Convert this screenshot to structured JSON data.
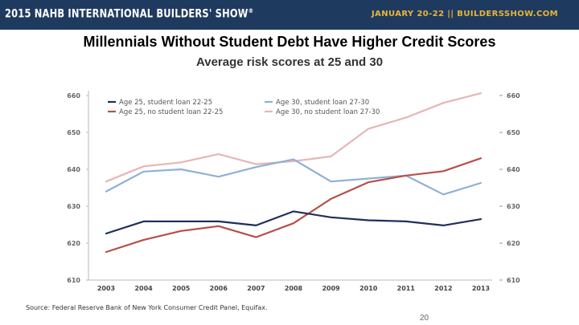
{
  "header": {
    "event": "2015 NAHB INTERNATIONAL BUILDERS' SHOW",
    "trademark": "®",
    "dates_site": "JANUARY 20-22  ||  BUILDERSSHOW.COM",
    "colors": {
      "banner": "#1f3a5f",
      "accent": "#e8b53a"
    }
  },
  "slide": {
    "title": "Millennials Without Student Debt Have Higher Credit Scores",
    "source": "Source:  Federal Reserve Bank of New York Consumer Credit Panel, Equifax.",
    "page_number": "20"
  },
  "chart_data": {
    "type": "line",
    "title": "Average risk scores at 25 and 30",
    "xlabel": "",
    "ylabel": "",
    "x": [
      "2003",
      "2004",
      "2005",
      "2006",
      "2007",
      "2008",
      "2009",
      "2010",
      "2011",
      "2012",
      "2013"
    ],
    "ylim": [
      610,
      660
    ],
    "yticks": [
      "610",
      "620",
      "630",
      "640",
      "650",
      "660"
    ],
    "dual_axis_mirrored": true,
    "legend_position": "top-left",
    "grid": false,
    "series": [
      {
        "name": "Age 25, student loan 22-25",
        "color": "#1f2f5a",
        "values": [
          622.6,
          625.9,
          625.9,
          625.9,
          624.8,
          628.6,
          627.0,
          626.2,
          625.9,
          624.8,
          626.5
        ]
      },
      {
        "name": "Age 30, student loan 27-30",
        "color": "#8fb0d6",
        "values": [
          634.0,
          639.4,
          640.0,
          638.0,
          640.6,
          642.7,
          636.7,
          637.5,
          638.3,
          633.2,
          636.3
        ]
      },
      {
        "name": "Age 25, no student loan 22-25",
        "color": "#b5504a",
        "values": [
          617.6,
          620.9,
          623.3,
          624.6,
          621.6,
          625.4,
          632.0,
          636.5,
          638.3,
          639.5,
          643.0
        ]
      },
      {
        "name": "Age 30, no student loan 27-30",
        "color": "#e7b6b6",
        "values": [
          636.7,
          640.8,
          641.9,
          644.1,
          641.4,
          642.2,
          643.5,
          651.0,
          654.0,
          658.0,
          660.6
        ]
      }
    ]
  }
}
